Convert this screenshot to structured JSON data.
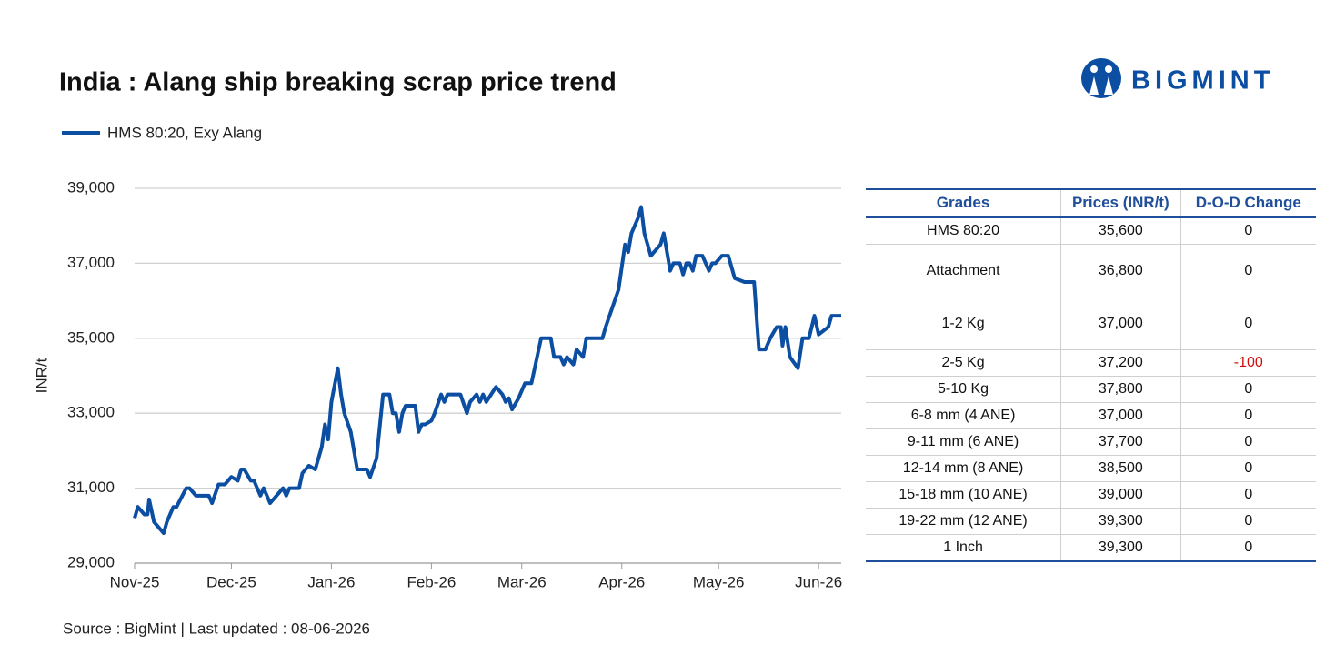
{
  "chart_data": {
    "type": "line",
    "title": "India : Alang ship breaking scrap price trend",
    "ylabel": "INR/t",
    "grid": true,
    "legend": "top-left",
    "xlim": [
      0,
      219
    ],
    "xticks": [
      {
        "value": 0,
        "label": "Nov-25"
      },
      {
        "value": 30,
        "label": "Dec-25"
      },
      {
        "value": 61,
        "label": "Jan-26"
      },
      {
        "value": 92,
        "label": "Feb-26"
      },
      {
        "value": 120,
        "label": "Mar-26"
      },
      {
        "value": 151,
        "label": "Apr-26"
      },
      {
        "value": 181,
        "label": "May-26"
      },
      {
        "value": 212,
        "label": "Jun-26"
      }
    ],
    "ylim": [
      29000,
      39000
    ],
    "yticks": [
      {
        "value": 29000,
        "label": "29,000"
      },
      {
        "value": 31000,
        "label": "31,000"
      },
      {
        "value": 33000,
        "label": "33,000"
      },
      {
        "value": 35000,
        "label": "35,000"
      },
      {
        "value": 37000,
        "label": "37,000"
      },
      {
        "value": 39000,
        "label": "39,000"
      }
    ],
    "x": [
      0,
      1,
      3,
      4,
      4.5,
      6,
      9,
      10,
      12,
      13,
      16,
      17,
      19,
      23,
      24,
      26,
      28,
      30,
      32,
      33,
      34,
      36,
      37,
      39,
      40,
      42,
      44,
      46,
      47,
      48,
      51,
      52,
      54,
      56,
      58,
      59,
      60,
      61,
      63,
      64,
      65,
      67,
      69,
      72,
      73,
      75,
      77,
      79,
      80,
      81,
      82,
      83,
      84,
      87,
      88,
      89,
      90,
      92,
      93,
      95,
      96,
      97,
      101,
      103,
      104,
      106,
      107,
      108,
      109,
      112,
      114,
      115,
      116,
      117,
      119,
      121,
      123,
      126,
      129,
      130,
      132,
      133,
      134,
      136,
      137,
      139,
      140,
      145,
      146,
      148,
      150,
      152,
      153,
      154,
      156,
      157,
      158,
      160,
      163,
      164,
      166,
      167,
      169,
      170,
      171,
      172,
      173,
      174,
      176,
      178,
      179,
      180,
      182,
      184,
      186,
      189,
      192,
      193.5,
      195.5,
      197,
      199,
      200.3,
      200.8,
      201.7,
      203.1,
      205.6,
      207,
      209,
      210.7,
      212,
      215,
      216,
      219
    ],
    "series": [
      {
        "name": "HMS 80:20, Exy Alang",
        "color": "#0b4ea2",
        "values": [
          30200,
          30500,
          30300,
          30300,
          30700,
          30100,
          29800,
          30100,
          30500,
          30500,
          31000,
          31000,
          30800,
          30800,
          30600,
          31100,
          31100,
          31300,
          31200,
          31500,
          31500,
          31200,
          31200,
          30800,
          31000,
          30600,
          30800,
          31000,
          30800,
          31000,
          31000,
          31400,
          31600,
          31500,
          32100,
          32700,
          32300,
          33300,
          34200,
          33500,
          33000,
          32500,
          31500,
          31500,
          31300,
          31800,
          33500,
          33500,
          33000,
          33000,
          32500,
          33000,
          33200,
          33200,
          32500,
          32700,
          32700,
          32800,
          33000,
          33500,
          33300,
          33500,
          33500,
          33000,
          33300,
          33500,
          33300,
          33500,
          33300,
          33700,
          33500,
          33300,
          33400,
          33100,
          33400,
          33800,
          33800,
          35000,
          35000,
          34500,
          34500,
          34300,
          34500,
          34300,
          34700,
          34500,
          35000,
          35000,
          35300,
          35800,
          36300,
          37500,
          37300,
          37800,
          38200,
          38500,
          37800,
          37200,
          37500,
          37800,
          36800,
          37000,
          37000,
          36700,
          37000,
          37000,
          36800,
          37200,
          37200,
          36800,
          37000,
          37000,
          37200,
          37200,
          36600,
          36500,
          36500,
          34700,
          34700,
          35000,
          35300,
          35300,
          34800,
          35300,
          34500,
          34200,
          35000,
          35000,
          35600,
          35100,
          35300,
          35600,
          35600
        ]
      }
    ]
  },
  "logo": "BIGMINT",
  "source": "Source : BigMint | Last updated : 08-06-2026",
  "table": {
    "columns": [
      "Grades",
      "Prices (INR/t)",
      "D-O-D Change"
    ],
    "rows": [
      [
        "HMS 80:20",
        "35,600",
        "0"
      ],
      [
        "Attachment",
        "36,800",
        "0"
      ],
      [
        "1-2 Kg",
        "37,000",
        "0"
      ],
      [
        "2-5 Kg",
        "37,200",
        "-100"
      ],
      [
        "5-10 Kg",
        "37,800",
        "0"
      ],
      [
        "6-8 mm (4 ANE)",
        "37,000",
        "0"
      ],
      [
        "9-11 mm (6 ANE)",
        "37,700",
        "0"
      ],
      [
        "12-14 mm (8 ANE)",
        "38,500",
        "0"
      ],
      [
        "15-18 mm (10 ANE)",
        "39,000",
        "0"
      ],
      [
        "19-22 mm (12 ANE)",
        "39,300",
        "0"
      ],
      [
        "1 Inch",
        "39,300",
        "0"
      ]
    ]
  }
}
